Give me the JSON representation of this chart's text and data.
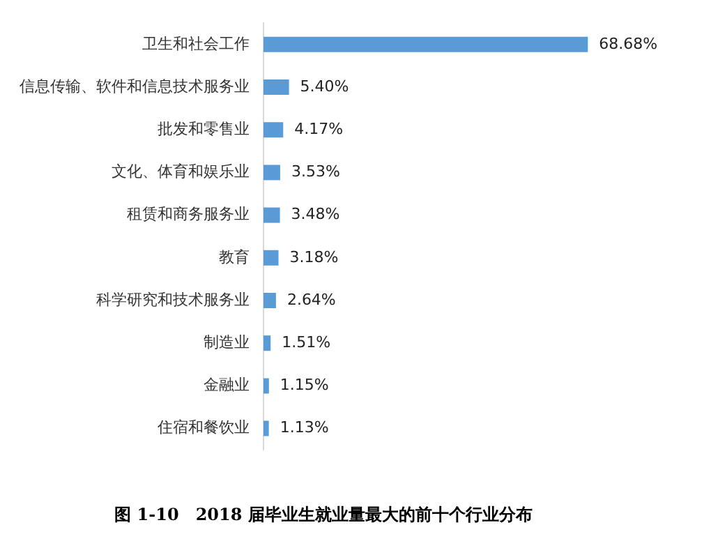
{
  "chart_data": {
    "type": "bar",
    "orientation": "horizontal",
    "title": "图 1-10　2018 届毕业生就业量最大的前十个行业分布",
    "categories": [
      "卫生和社会工作",
      "信息传输、软件和信息技术服务业",
      "批发和零售业",
      "文化、体育和娱乐业",
      "租赁和商务服务业",
      "教育",
      "科学研究和技术服务业",
      "制造业",
      "金融业",
      "住宿和餐饮业"
    ],
    "values": [
      68.68,
      5.4,
      4.17,
      3.53,
      3.48,
      3.18,
      2.64,
      1.51,
      1.15,
      1.13
    ],
    "value_labels": [
      "68.68%",
      "5.40%",
      "4.17%",
      "3.53%",
      "3.48%",
      "3.18%",
      "2.64%",
      "1.51%",
      "1.15%",
      "1.13%"
    ],
    "color": "#5b9bd5",
    "grid": false,
    "legend": false,
    "tick_labels": "y"
  }
}
